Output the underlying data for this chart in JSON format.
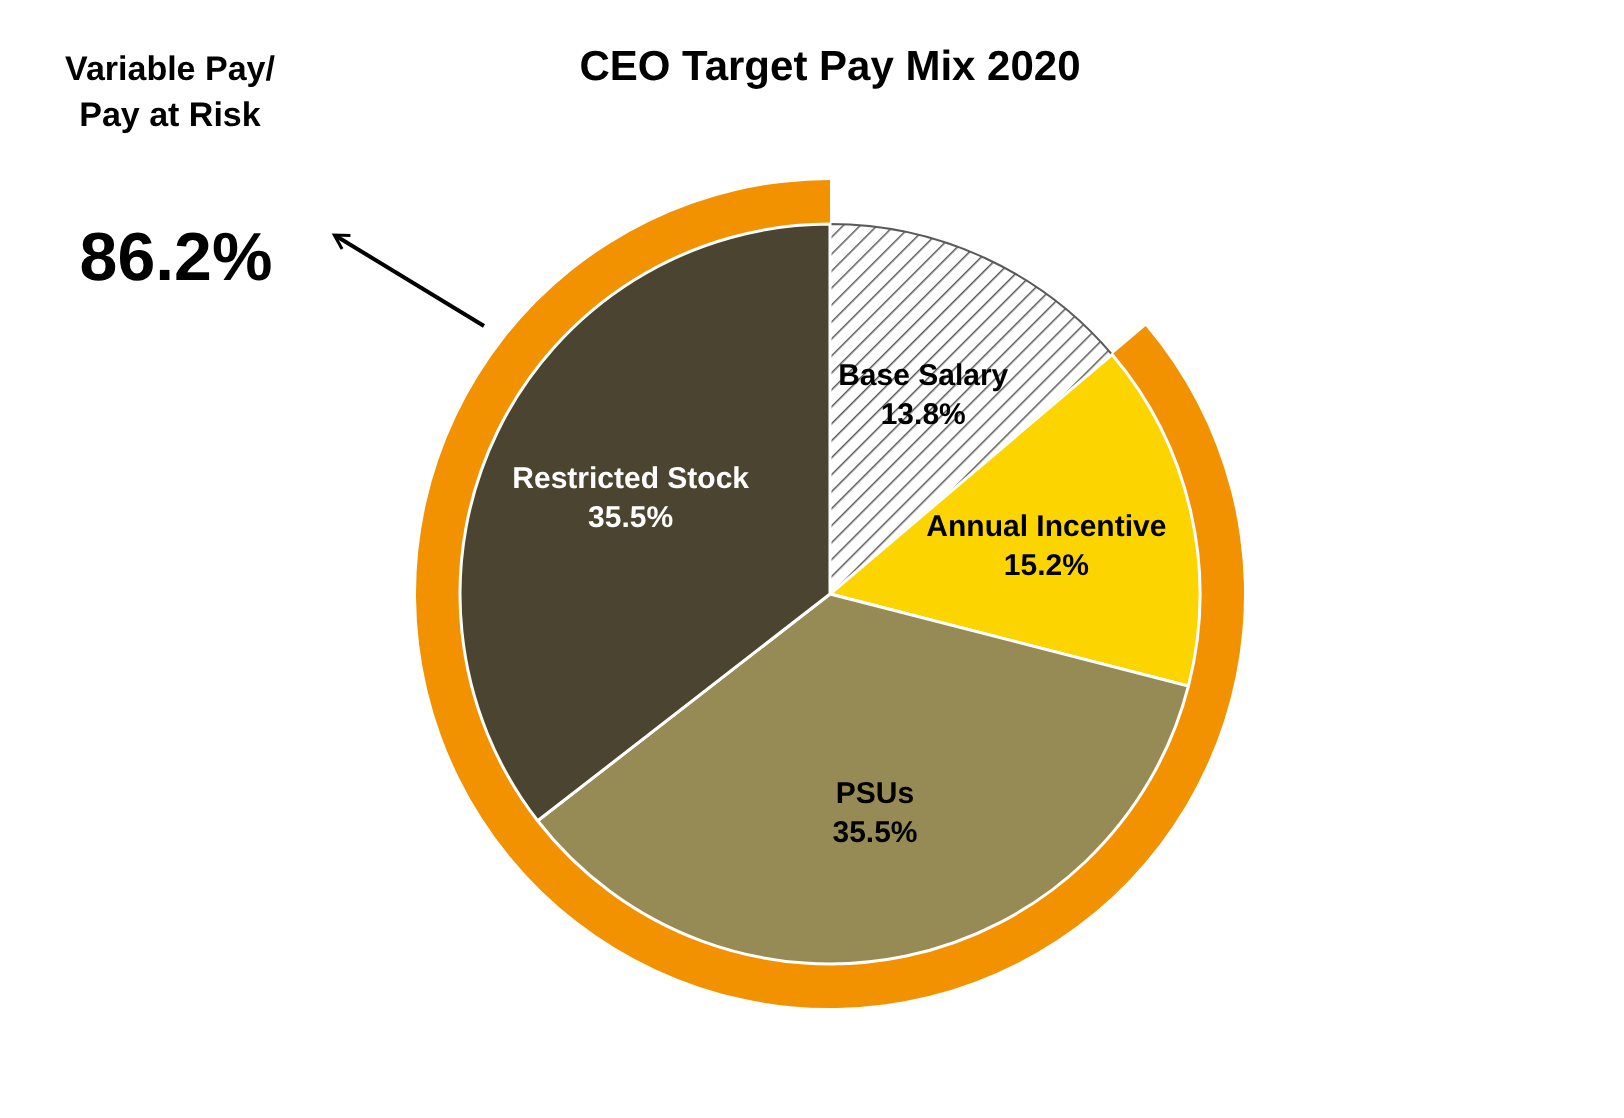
{
  "chart_data": {
    "type": "pie",
    "title": "CEO Target Pay Mix 2020",
    "categories": [
      "Base Salary",
      "Annual Incentive",
      "PSUs",
      "Restricted Stock"
    ],
    "values": [
      13.8,
      15.2,
      35.5,
      35.5
    ],
    "value_labels": [
      "13.8%",
      "15.2%",
      "35.5%",
      "35.5%"
    ],
    "colors": [
      "#5a5a5a",
      "#fcd500",
      "#968b55",
      "#4b4431"
    ],
    "annotations": [
      "Variable Pay/\nPay at Risk",
      "86.2%"
    ]
  }
}
